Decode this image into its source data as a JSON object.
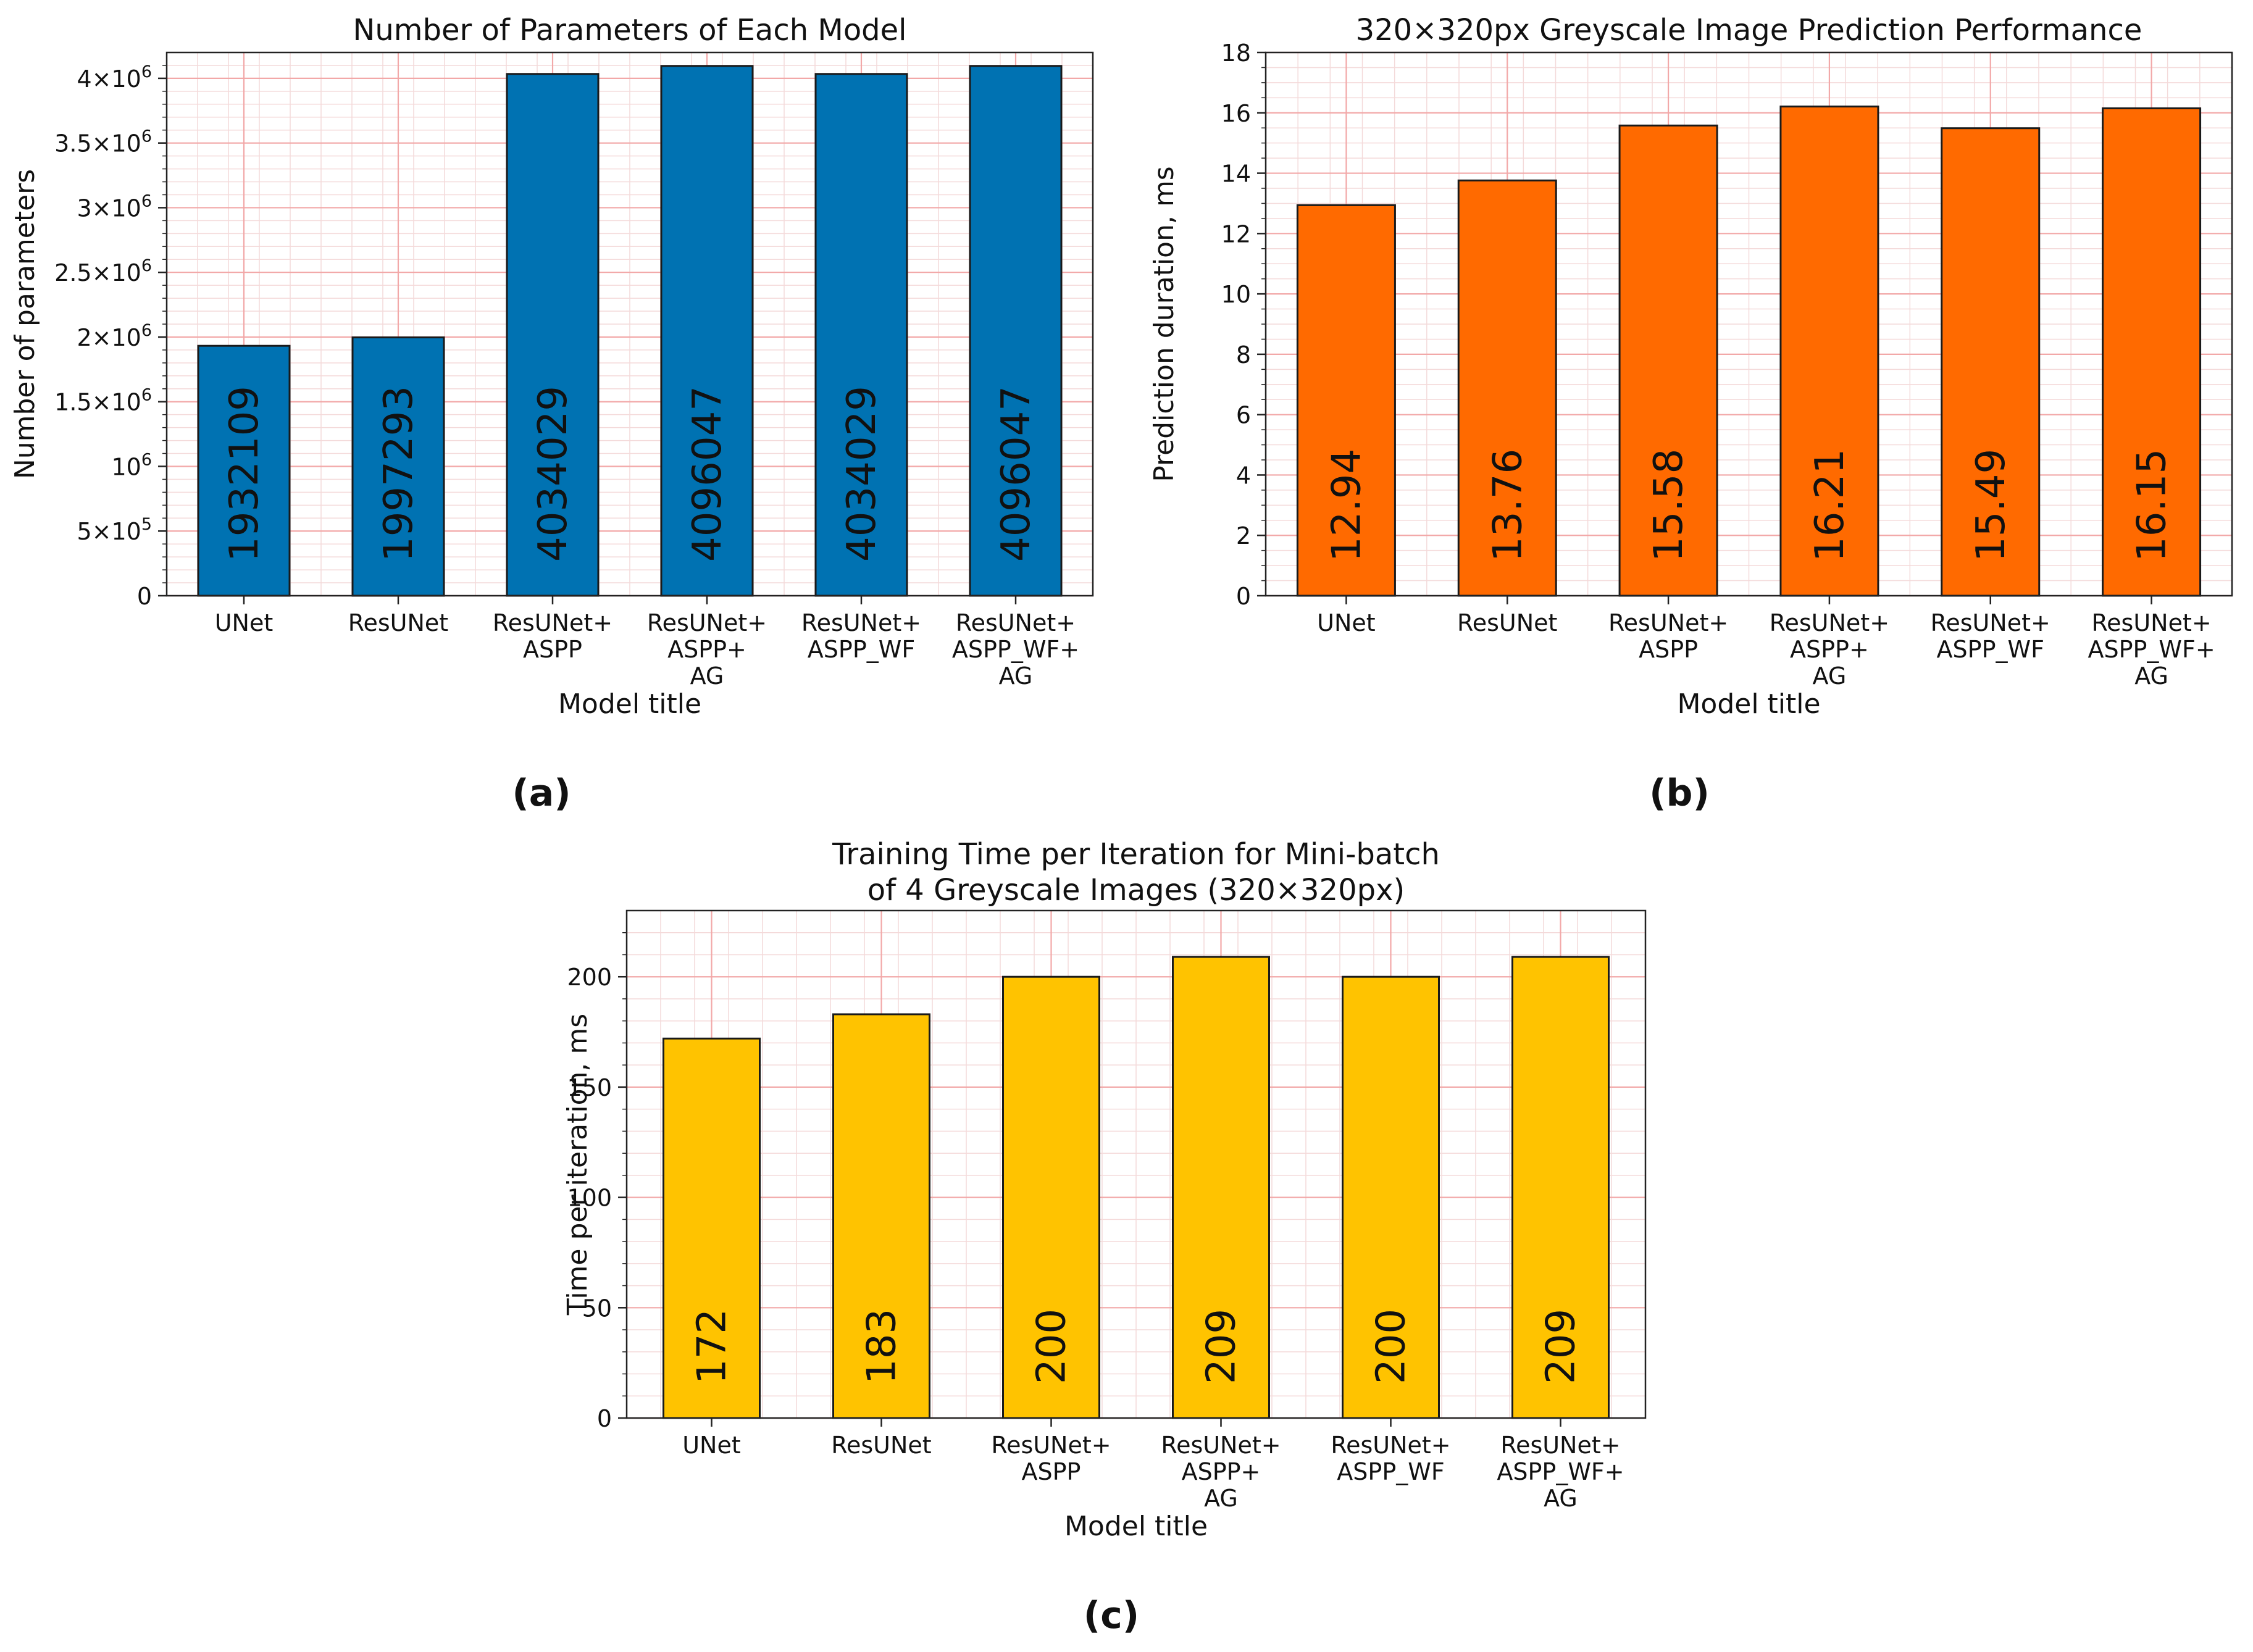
{
  "chart_data": [
    {
      "type": "bar",
      "title": "Number of Parameters of Each Model",
      "xlabel": "Model title",
      "ylabel": "Number of parameters",
      "categories": [
        [
          "UNet"
        ],
        [
          "ResUNet"
        ],
        [
          "ResUNet+",
          "ASPP"
        ],
        [
          "ResUNet+",
          "ASPP+",
          "AG"
        ],
        [
          "ResUNet+",
          "ASPP_WF"
        ],
        [
          "ResUNet+",
          "ASPP_WF+",
          "AG"
        ]
      ],
      "values": [
        1932109,
        1997293,
        4034029,
        4096047,
        4034029,
        4096047
      ],
      "data_labels": [
        "1932109",
        "1997293",
        "4034029",
        "4096047",
        "4034029",
        "4096047"
      ],
      "ylim": [
        0,
        4200000
      ],
      "yticks": [
        {
          "value": 0,
          "label": "0"
        },
        {
          "value": 500000,
          "label": "5×10",
          "exp": "5"
        },
        {
          "value": 1000000,
          "label": "10",
          "exp": "6"
        },
        {
          "value": 1500000,
          "label": "1.5×10",
          "exp": "6"
        },
        {
          "value": 2000000,
          "label": "2×10",
          "exp": "6"
        },
        {
          "value": 2500000,
          "label": "2.5×10",
          "exp": "6"
        },
        {
          "value": 3000000,
          "label": "3×10",
          "exp": "6"
        },
        {
          "value": 3500000,
          "label": "3.5×10",
          "exp": "6"
        },
        {
          "value": 4000000,
          "label": "4×10",
          "exp": "6"
        }
      ],
      "minor_step": 100000,
      "grid": true,
      "color": "#0072B2",
      "caption": "(a)"
    },
    {
      "type": "bar",
      "title": "320×320px Greyscale Image Prediction Performance",
      "xlabel": "Model title",
      "ylabel": "Prediction duration, ms",
      "categories": [
        [
          "UNet"
        ],
        [
          "ResUNet"
        ],
        [
          "ResUNet+",
          "ASPP"
        ],
        [
          "ResUNet+",
          "ASPP+",
          "AG"
        ],
        [
          "ResUNet+",
          "ASPP_WF"
        ],
        [
          "ResUNet+",
          "ASPP_WF+",
          "AG"
        ]
      ],
      "values": [
        12.94,
        13.76,
        15.58,
        16.21,
        15.49,
        16.15
      ],
      "data_labels": [
        "12.94",
        "13.76",
        "15.58",
        "16.21",
        "15.49",
        "16.15"
      ],
      "ylim": [
        0,
        18
      ],
      "yticks": [
        {
          "value": 0,
          "label": "0"
        },
        {
          "value": 2,
          "label": "2"
        },
        {
          "value": 4,
          "label": "4"
        },
        {
          "value": 6,
          "label": "6"
        },
        {
          "value": 8,
          "label": "8"
        },
        {
          "value": 10,
          "label": "10"
        },
        {
          "value": 12,
          "label": "12"
        },
        {
          "value": 14,
          "label": "14"
        },
        {
          "value": 16,
          "label": "16"
        },
        {
          "value": 18,
          "label": "18"
        }
      ],
      "minor_step": 0.5,
      "grid": true,
      "color": "#FF6A00",
      "caption": "(b)"
    },
    {
      "type": "bar",
      "title": [
        "Training Time per Iteration for Mini-batch",
        "of 4 Greyscale Images (320×320px)"
      ],
      "xlabel": "Model title",
      "ylabel": "Time per iteration, ms",
      "categories": [
        [
          "UNet"
        ],
        [
          "ResUNet"
        ],
        [
          "ResUNet+",
          "ASPP"
        ],
        [
          "ResUNet+",
          "ASPP+",
          "AG"
        ],
        [
          "ResUNet+",
          "ASPP_WF"
        ],
        [
          "ResUNet+",
          "ASPP_WF+",
          "AG"
        ]
      ],
      "values": [
        172,
        183,
        200,
        209,
        200,
        209
      ],
      "data_labels": [
        "172",
        "183",
        "200",
        "209",
        "200",
        "209"
      ],
      "ylim": [
        0,
        230
      ],
      "yticks": [
        {
          "value": 0,
          "label": "0"
        },
        {
          "value": 50,
          "label": "50"
        },
        {
          "value": 100,
          "label": "100"
        },
        {
          "value": 150,
          "label": "150"
        },
        {
          "value": 200,
          "label": "200"
        }
      ],
      "minor_step": 10,
      "grid": true,
      "color": "#FFC300",
      "caption": "(c)"
    }
  ]
}
